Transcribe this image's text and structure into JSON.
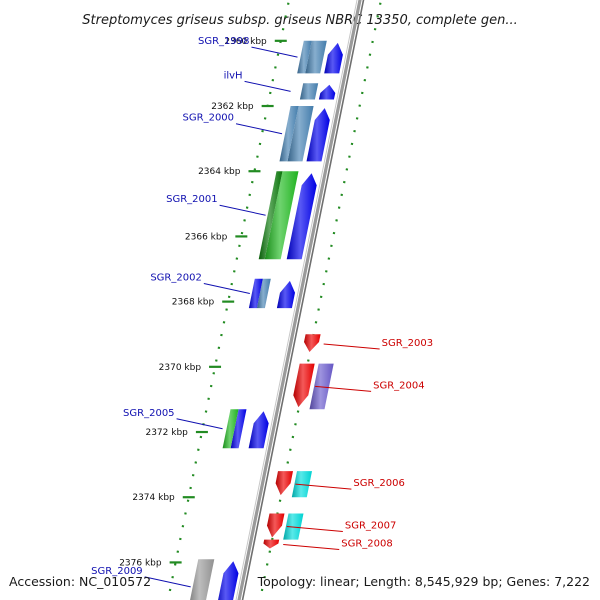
{
  "title": "Streptomyces griseus subsp. griseus NBRC 13350, complete gen...",
  "footer": {
    "accession": "Accession: NC_010572",
    "summary": "Topology: linear; Length: 8,545,929 bp; Genes: 7,222"
  },
  "colors": {
    "forward_gene": "#0000ee",
    "reverse_gene": "#ee0000",
    "forward_label": "#1010b0",
    "reverse_label": "#cc0000",
    "steel_feature": "#4682b4",
    "green_feature": "#22bb22",
    "cyan_feature": "#00dddd",
    "purple_feature": "#6a5acd",
    "gray_feature": "#999999",
    "ruler_dots": "#228b22",
    "backbone": "#8a8a8a"
  },
  "axis": {
    "unit": "kbp",
    "ticks": [
      {
        "value": 2360,
        "label": "2360 kbp"
      },
      {
        "value": 2362,
        "label": "2362 kbp"
      },
      {
        "value": 2364,
        "label": "2364 kbp"
      },
      {
        "value": 2366,
        "label": "2366 kbp"
      },
      {
        "value": 2368,
        "label": "2368 kbp"
      },
      {
        "value": 2370,
        "label": "2370 kbp"
      },
      {
        "value": 2372,
        "label": "2372 kbp"
      },
      {
        "value": 2374,
        "label": "2374 kbp"
      },
      {
        "value": 2376,
        "label": "2376 kbp"
      }
    ]
  },
  "genes": [
    {
      "name": "SGR_1998",
      "strand": "forward",
      "start_kbp": 2360.0,
      "end_kbp": 2361.0
    },
    {
      "name": "ilvH",
      "strand": "forward",
      "start_kbp": 2361.3,
      "end_kbp": 2361.8
    },
    {
      "name": "SGR_2000",
      "strand": "forward",
      "start_kbp": 2362.0,
      "end_kbp": 2363.7
    },
    {
      "name": "SGR_2001",
      "strand": "forward",
      "start_kbp": 2364.0,
      "end_kbp": 2366.7
    },
    {
      "name": "SGR_2002",
      "strand": "forward",
      "start_kbp": 2367.3,
      "end_kbp": 2368.2
    },
    {
      "name": "SGR_2003",
      "strand": "reverse",
      "start_kbp": 2369.0,
      "end_kbp": 2369.6
    },
    {
      "name": "SGR_2004",
      "strand": "reverse",
      "start_kbp": 2369.9,
      "end_kbp": 2371.3
    },
    {
      "name": "SGR_2005",
      "strand": "forward",
      "start_kbp": 2371.3,
      "end_kbp": 2372.5
    },
    {
      "name": "SGR_2006",
      "strand": "reverse",
      "start_kbp": 2373.2,
      "end_kbp": 2374.0
    },
    {
      "name": "SGR_2007",
      "strand": "reverse",
      "start_kbp": 2374.5,
      "end_kbp": 2375.3
    },
    {
      "name": "SGR_2008",
      "strand": "reverse",
      "start_kbp": 2375.3,
      "end_kbp": 2375.6
    },
    {
      "name": "SGR_2009",
      "strand": "forward",
      "start_kbp": 2375.9,
      "end_kbp": 2377.6
    }
  ]
}
